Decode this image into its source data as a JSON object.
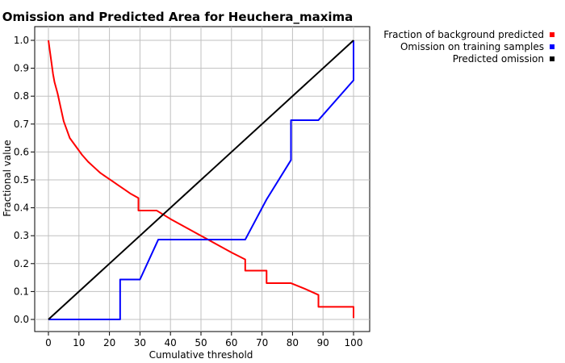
{
  "chart_data": {
    "type": "line",
    "title": "Omission and Predicted Area for Heuchera_maxima",
    "xlabel": "Cumulative threshold",
    "ylabel": "Fractional value",
    "xlim": [
      0,
      100
    ],
    "ylim": [
      0,
      1
    ],
    "grid": true,
    "legend_position": "top-right (outside plot area)",
    "x_ticks": [
      "0",
      "10",
      "20",
      "30",
      "40",
      "50",
      "60",
      "70",
      "80",
      "90",
      "100"
    ],
    "y_ticks": [
      "0.0",
      "0.1",
      "0.2",
      "0.3",
      "0.4",
      "0.5",
      "0.6",
      "0.7",
      "0.8",
      "0.9",
      "1.0"
    ],
    "series": [
      {
        "name": "Fraction of background predicted",
        "color": "#ff0000",
        "points": [
          [
            0,
            1.0
          ],
          [
            0.5,
            0.96
          ],
          [
            1,
            0.92
          ],
          [
            1.5,
            0.88
          ],
          [
            2,
            0.85
          ],
          [
            3,
            0.81
          ],
          [
            4,
            0.76
          ],
          [
            5,
            0.71
          ],
          [
            6,
            0.68
          ],
          [
            7,
            0.65
          ],
          [
            9,
            0.62
          ],
          [
            11,
            0.59
          ],
          [
            13,
            0.565
          ],
          [
            15,
            0.545
          ],
          [
            17,
            0.525
          ],
          [
            19,
            0.51
          ],
          [
            21,
            0.495
          ],
          [
            23,
            0.48
          ],
          [
            25,
            0.465
          ],
          [
            27,
            0.45
          ],
          [
            29.5,
            0.435
          ],
          [
            29.5,
            0.39
          ],
          [
            35.5,
            0.39
          ],
          [
            40,
            0.36
          ],
          [
            45,
            0.33
          ],
          [
            50,
            0.3
          ],
          [
            55,
            0.27
          ],
          [
            60,
            0.24
          ],
          [
            64.5,
            0.215
          ],
          [
            64.5,
            0.175
          ],
          [
            71.5,
            0.175
          ],
          [
            71.5,
            0.13
          ],
          [
            79.5,
            0.13
          ],
          [
            84,
            0.11
          ],
          [
            88.5,
            0.088
          ],
          [
            88.5,
            0.045
          ],
          [
            100,
            0.045
          ],
          [
            100,
            0.005
          ]
        ]
      },
      {
        "name": "Omission on training samples",
        "color": "#0000ff",
        "points": [
          [
            0,
            0
          ],
          [
            23.5,
            0
          ],
          [
            23.5,
            0.143
          ],
          [
            30,
            0.143
          ],
          [
            36,
            0.286
          ],
          [
            64.5,
            0.286
          ],
          [
            71.5,
            0.43
          ],
          [
            79.5,
            0.571
          ],
          [
            79.5,
            0.714
          ],
          [
            88.5,
            0.714
          ],
          [
            100,
            0.857
          ],
          [
            100,
            1.0
          ]
        ]
      },
      {
        "name": "Predicted omission",
        "color": "#000000",
        "points": [
          [
            0,
            0
          ],
          [
            100,
            1
          ]
        ]
      }
    ]
  }
}
